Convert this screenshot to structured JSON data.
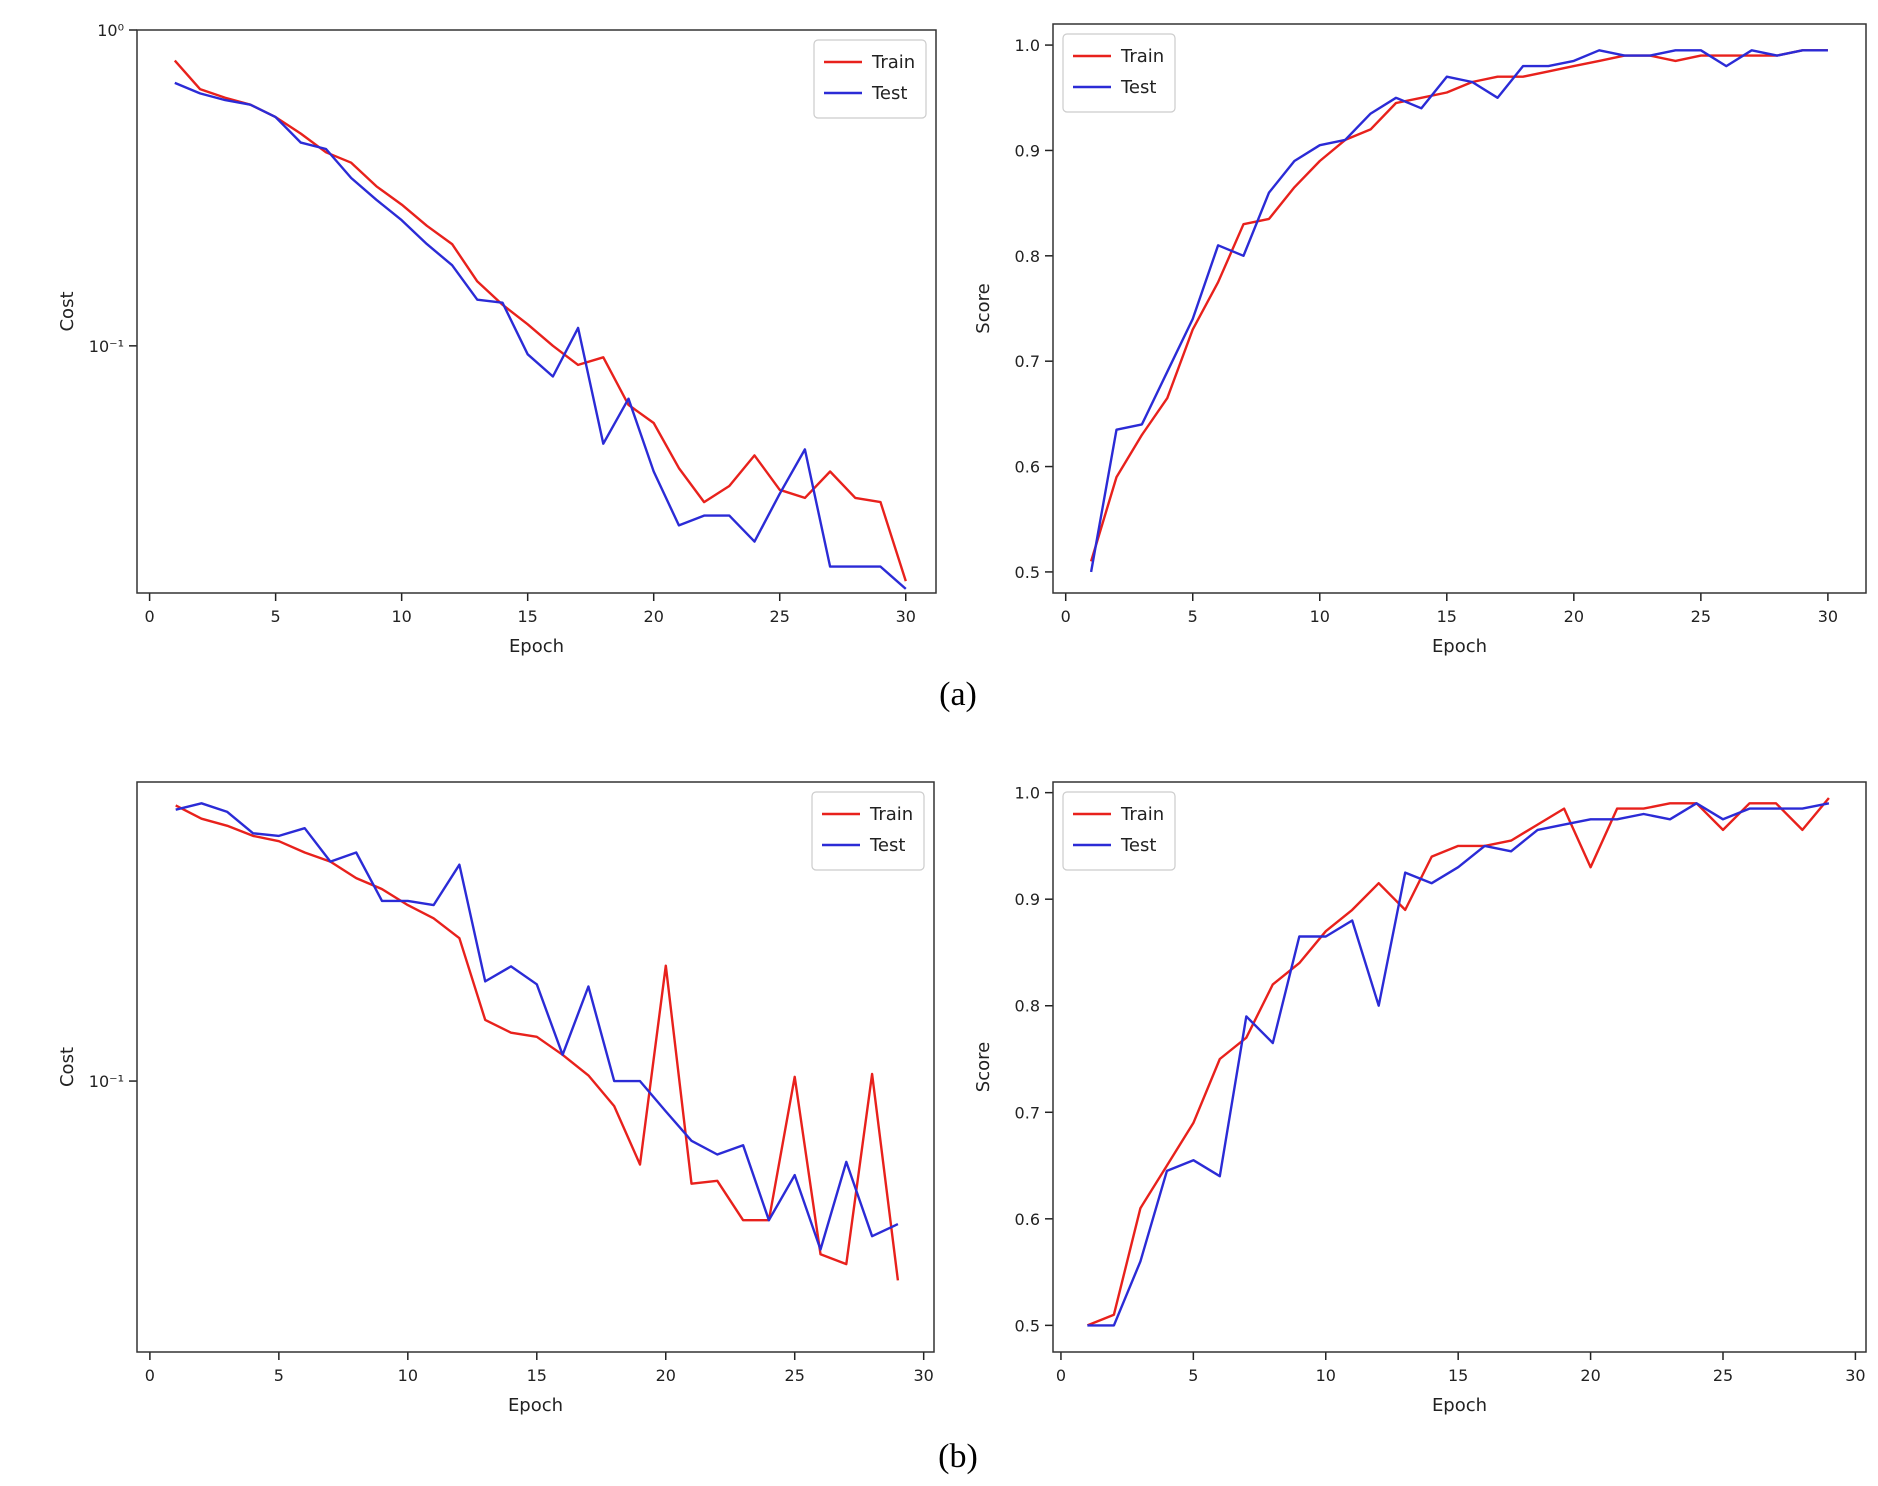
{
  "colors": {
    "train": "#e8211c",
    "test": "#2b2bd6"
  },
  "captions": {
    "a": "(a)",
    "b": "(b)"
  },
  "chart_data": [
    {
      "type": "line",
      "panel": "a-cost",
      "xlabel": "Epoch",
      "ylabel": "Cost",
      "yscale": "log",
      "xlim": [
        -0.5,
        31.2
      ],
      "ylim": [
        0.0165,
        1.0
      ],
      "xticks": [
        0,
        5,
        10,
        15,
        20,
        25,
        30
      ],
      "yticks": [
        {
          "value": 1.0,
          "label": "10⁰"
        },
        {
          "value": 0.1,
          "label": "10⁻¹"
        }
      ],
      "legend": "top-right",
      "x": [
        1,
        2,
        3,
        4,
        5,
        6,
        7,
        8,
        9,
        10,
        11,
        12,
        13,
        14,
        15,
        16,
        17,
        18,
        19,
        20,
        21,
        22,
        23,
        24,
        25,
        26,
        27,
        28,
        29,
        30
      ],
      "series": [
        {
          "name": "Train",
          "color": "train",
          "values": [
            0.8,
            0.65,
            0.61,
            0.58,
            0.53,
            0.47,
            0.41,
            0.38,
            0.32,
            0.28,
            0.24,
            0.21,
            0.16,
            0.135,
            0.117,
            0.1,
            0.087,
            0.092,
            0.065,
            0.057,
            0.041,
            0.032,
            0.036,
            0.045,
            0.035,
            0.033,
            0.04,
            0.033,
            0.032,
            0.018
          ]
        },
        {
          "name": "Test",
          "color": "test",
          "values": [
            0.68,
            0.63,
            0.6,
            0.58,
            0.53,
            0.44,
            0.42,
            0.34,
            0.29,
            0.25,
            0.21,
            0.18,
            0.14,
            0.137,
            0.094,
            0.08,
            0.114,
            0.049,
            0.068,
            0.04,
            0.027,
            0.029,
            0.029,
            0.024,
            0.034,
            0.047,
            0.02,
            0.02,
            0.02,
            0.017
          ]
        }
      ]
    },
    {
      "type": "line",
      "panel": "a-score",
      "xlabel": "Epoch",
      "ylabel": "Score",
      "xlim": [
        -0.5,
        31.5
      ],
      "ylim": [
        0.48,
        1.02
      ],
      "xticks": [
        0,
        5,
        10,
        15,
        20,
        25,
        30
      ],
      "yticks": [
        {
          "value": 0.5,
          "label": "0.5"
        },
        {
          "value": 0.6,
          "label": "0.6"
        },
        {
          "value": 0.7,
          "label": "0.7"
        },
        {
          "value": 0.8,
          "label": "0.8"
        },
        {
          "value": 0.9,
          "label": "0.9"
        },
        {
          "value": 1.0,
          "label": "1.0"
        }
      ],
      "legend": "top-left",
      "x": [
        1,
        2,
        3,
        4,
        5,
        6,
        7,
        8,
        9,
        10,
        11,
        12,
        13,
        14,
        15,
        16,
        17,
        18,
        19,
        20,
        21,
        22,
        23,
        24,
        25,
        26,
        27,
        28,
        29,
        30
      ],
      "series": [
        {
          "name": "Train",
          "color": "train",
          "values": [
            0.51,
            0.59,
            0.63,
            0.665,
            0.73,
            0.775,
            0.83,
            0.835,
            0.865,
            0.89,
            0.91,
            0.92,
            0.945,
            0.95,
            0.955,
            0.965,
            0.97,
            0.97,
            0.975,
            0.98,
            0.985,
            0.99,
            0.99,
            0.985,
            0.99,
            0.99,
            0.99,
            0.99,
            0.995,
            0.995
          ]
        },
        {
          "name": "Test",
          "color": "test",
          "values": [
            0.5,
            0.635,
            0.64,
            0.69,
            0.74,
            0.81,
            0.8,
            0.86,
            0.89,
            0.905,
            0.91,
            0.935,
            0.95,
            0.94,
            0.97,
            0.965,
            0.95,
            0.98,
            0.98,
            0.985,
            0.995,
            0.99,
            0.99,
            0.995,
            0.995,
            0.98,
            0.995,
            0.99,
            0.995,
            0.995
          ]
        }
      ]
    },
    {
      "type": "line",
      "panel": "b-cost",
      "xlabel": "Epoch",
      "ylabel": "Cost",
      "yscale": "log",
      "xlim": [
        -0.5,
        30.4
      ],
      "ylim": [
        0.0152,
        0.8
      ],
      "xticks": [
        0,
        5,
        10,
        15,
        20,
        25,
        30
      ],
      "yticks": [
        {
          "value": 0.1,
          "label": "10⁻¹"
        }
      ],
      "legend": "top-right",
      "x": [
        1,
        2,
        3,
        4,
        5,
        6,
        7,
        8,
        9,
        10,
        11,
        12,
        13,
        14,
        15,
        16,
        17,
        18,
        19,
        20,
        21,
        22,
        23,
        24,
        25,
        26,
        27,
        28,
        29
      ],
      "series": [
        {
          "name": "Train",
          "color": "train",
          "values": [
            0.68,
            0.62,
            0.59,
            0.55,
            0.53,
            0.49,
            0.46,
            0.41,
            0.38,
            0.34,
            0.31,
            0.27,
            0.153,
            0.14,
            0.136,
            0.12,
            0.104,
            0.084,
            0.056,
            0.223,
            0.049,
            0.05,
            0.038,
            0.038,
            0.103,
            0.03,
            0.028,
            0.105,
            0.025
          ]
        },
        {
          "name": "Test",
          "color": "test",
          "values": [
            0.66,
            0.69,
            0.65,
            0.56,
            0.55,
            0.58,
            0.46,
            0.49,
            0.35,
            0.35,
            0.34,
            0.45,
            0.2,
            0.222,
            0.196,
            0.12,
            0.193,
            0.1,
            0.1,
            0.081,
            0.066,
            0.06,
            0.064,
            0.038,
            0.052,
            0.031,
            0.057,
            0.034,
            0.037
          ]
        }
      ]
    },
    {
      "type": "line",
      "panel": "b-score",
      "xlabel": "Epoch",
      "ylabel": "Score",
      "xlim": [
        -0.3,
        30.4
      ],
      "ylim": [
        0.475,
        1.01
      ],
      "xticks": [
        0,
        5,
        10,
        15,
        20,
        25,
        30
      ],
      "yticks": [
        {
          "value": 0.5,
          "label": "0.5"
        },
        {
          "value": 0.6,
          "label": "0.6"
        },
        {
          "value": 0.7,
          "label": "0.7"
        },
        {
          "value": 0.8,
          "label": "0.8"
        },
        {
          "value": 0.9,
          "label": "0.9"
        },
        {
          "value": 1.0,
          "label": "1.0"
        }
      ],
      "legend": "top-left",
      "x": [
        1,
        2,
        3,
        4,
        5,
        6,
        7,
        8,
        9,
        10,
        11,
        12,
        13,
        14,
        15,
        16,
        17,
        18,
        19,
        20,
        21,
        22,
        23,
        24,
        25,
        26,
        27,
        28,
        29
      ],
      "series": [
        {
          "name": "Train",
          "color": "train",
          "values": [
            0.5,
            0.51,
            0.61,
            0.65,
            0.69,
            0.75,
            0.77,
            0.82,
            0.84,
            0.87,
            0.89,
            0.915,
            0.89,
            0.94,
            0.95,
            0.95,
            0.955,
            0.97,
            0.985,
            0.93,
            0.985,
            0.985,
            0.99,
            0.99,
            0.965,
            0.99,
            0.99,
            0.965,
            0.995
          ]
        },
        {
          "name": "Test",
          "color": "test",
          "values": [
            0.5,
            0.5,
            0.56,
            0.645,
            0.655,
            0.64,
            0.79,
            0.765,
            0.865,
            0.865,
            0.88,
            0.8,
            0.925,
            0.915,
            0.93,
            0.95,
            0.945,
            0.965,
            0.97,
            0.975,
            0.975,
            0.98,
            0.975,
            0.99,
            0.975,
            0.985,
            0.985,
            0.985,
            0.99
          ]
        }
      ]
    }
  ]
}
